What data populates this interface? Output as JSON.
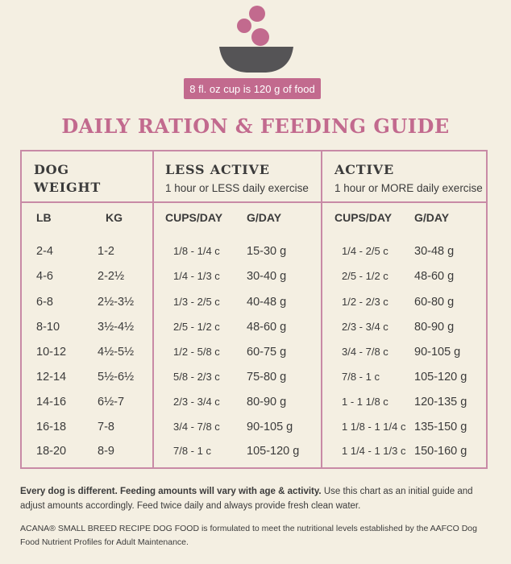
{
  "banner": {
    "cup_text": "8 fl. oz cup is 120 g of food"
  },
  "title": "DAILY RATION & FEEDING GUIDE",
  "groups": {
    "dog_weight": {
      "line1": "DOG",
      "line2": "WEIGHT"
    },
    "less_active": {
      "title": "LESS ACTIVE",
      "subtitle": "1 hour or LESS daily exercise"
    },
    "active": {
      "title": "ACTIVE",
      "subtitle": "1 hour or MORE daily exercise"
    }
  },
  "columns": {
    "lb": "LB",
    "kg": "KG",
    "la_cups": "CUPS/DAY",
    "la_g": "G/DAY",
    "a_cups": "CUPS/DAY",
    "a_g": "G/DAY"
  },
  "rows": [
    {
      "lb": "2-4",
      "kg": "1-2",
      "la_cups": "1/8 - 1/4 c",
      "la_g": "15-30 g",
      "a_cups": "1/4 - 2/5 c",
      "a_g": "30-48 g"
    },
    {
      "lb": "4-6",
      "kg": "2-2½",
      "la_cups": "1/4 - 1/3 c",
      "la_g": "30-40 g",
      "a_cups": "2/5 - 1/2 c",
      "a_g": "48-60 g"
    },
    {
      "lb": "6-8",
      "kg": "2½-3½",
      "la_cups": "1/3 - 2/5 c",
      "la_g": "40-48 g",
      "a_cups": "1/2 - 2/3 c",
      "a_g": "60-80 g"
    },
    {
      "lb": "8-10",
      "kg": "3½-4½",
      "la_cups": "2/5 - 1/2 c",
      "la_g": "48-60 g",
      "a_cups": "2/3 - 3/4 c",
      "a_g": "80-90 g"
    },
    {
      "lb": "10-12",
      "kg": "4½-5½",
      "la_cups": "1/2 - 5/8 c",
      "la_g": "60-75 g",
      "a_cups": "3/4 - 7/8 c",
      "a_g": "90-105 g"
    },
    {
      "lb": "12-14",
      "kg": "5½-6½",
      "la_cups": "5/8 - 2/3 c",
      "la_g": "75-80 g",
      "a_cups": "7/8 - 1 c",
      "a_g": "105-120 g"
    },
    {
      "lb": "14-16",
      "kg": "6½-7",
      "la_cups": "2/3 - 3/4 c",
      "la_g": "80-90 g",
      "a_cups": "1 - 1 1/8 c",
      "a_g": "120-135 g"
    },
    {
      "lb": "16-18",
      "kg": "7-8",
      "la_cups": "3/4 - 7/8 c",
      "la_g": "90-105 g",
      "a_cups": "1 1/8 - 1 1/4 c",
      "a_g": "135-150 g"
    },
    {
      "lb": "18-20",
      "kg": "8-9",
      "la_cups": "7/8 - 1 c",
      "la_g": "105-120 g",
      "a_cups": "1 1/4 - 1 1/3 c",
      "a_g": "150-160 g"
    }
  ],
  "notes": {
    "bold": "Every dog is different. Feeding amounts will vary with age & activity.",
    "rest": " Use this chart as an initial guide and adjust amounts accordingly. Feed twice daily and always provide fresh clean water.",
    "aafco": "ACANA® SMALL BREED RECIPE DOG FOOD is formulated to meet the nutritional levels established by the AAFCO Dog Food Nutrient Profiles for Adult Maintenance."
  },
  "colors": {
    "accent": "#c26a8e",
    "bowl": "#555456",
    "background": "#f4efe2",
    "text": "#3b3b3b"
  }
}
